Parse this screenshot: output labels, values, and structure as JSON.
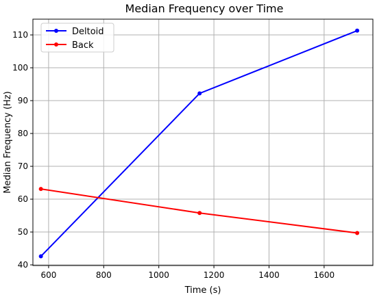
{
  "chart_data": {
    "type": "line",
    "title": "Median Frequency over Time",
    "xlabel": "Time (s)",
    "ylabel": "Median Frequency (Hz)",
    "xlim": [
      543,
      1777
    ],
    "ylim": [
      39.8,
      114.8
    ],
    "xticks": [
      600,
      800,
      1000,
      1200,
      1400,
      1600
    ],
    "yticks": [
      40,
      50,
      60,
      70,
      80,
      90,
      100,
      110
    ],
    "grid": true,
    "legend_position": "top-left",
    "series": [
      {
        "name": "Deltoid",
        "color": "#0000ff",
        "x": [
          572,
          1148,
          1720
        ],
        "y": [
          42.6,
          92.2,
          111.3
        ]
      },
      {
        "name": "Back",
        "color": "#ff0000",
        "x": [
          572,
          1148,
          1720
        ],
        "y": [
          63.1,
          55.8,
          49.7
        ]
      }
    ]
  }
}
